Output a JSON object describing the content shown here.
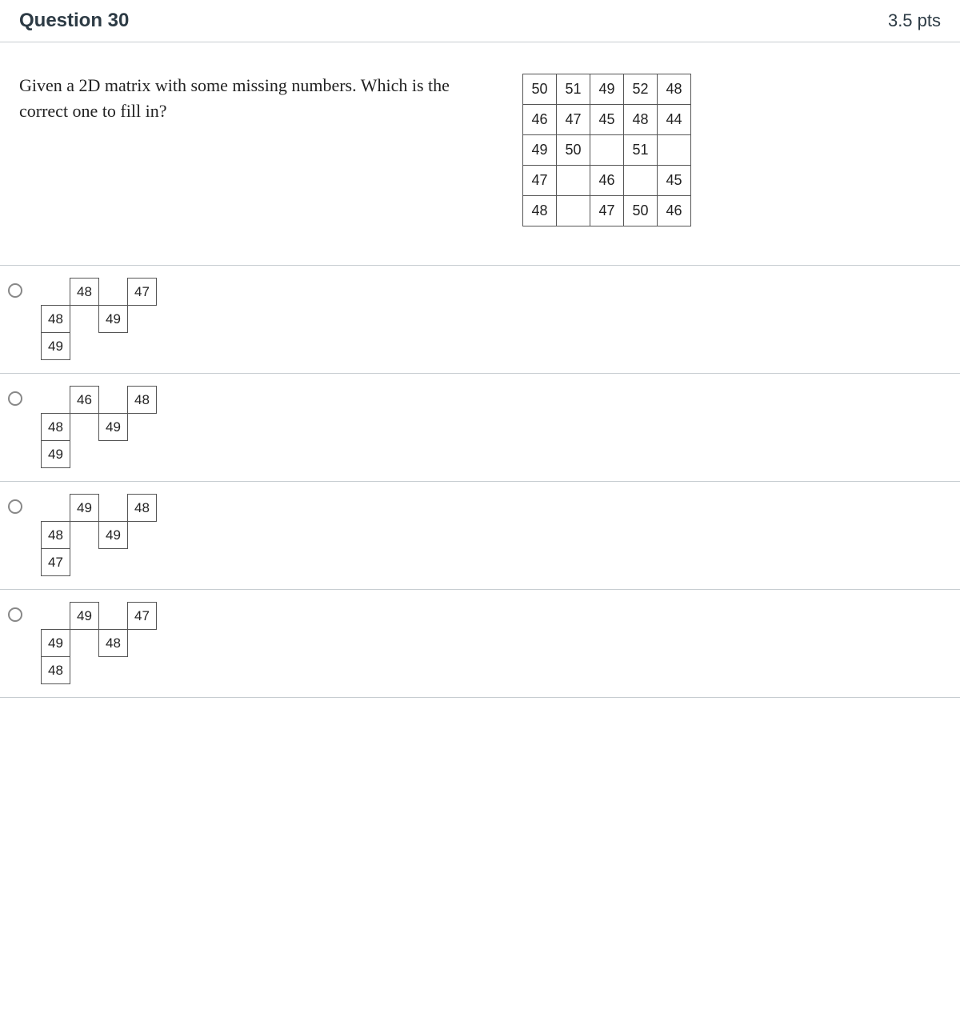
{
  "header": {
    "title": "Question 30",
    "points": "3.5 pts"
  },
  "prompt": "Given a 2D matrix with some missing numbers. Which is the correct one to fill in?",
  "matrix": {
    "rows": 5,
    "cols": 5,
    "cells": [
      [
        "50",
        "51",
        "49",
        "52",
        "48"
      ],
      [
        "46",
        "47",
        "45",
        "48",
        "44"
      ],
      [
        "49",
        "50",
        "",
        "51",
        ""
      ],
      [
        "47",
        "",
        "46",
        "",
        "45"
      ],
      [
        "48",
        "",
        "47",
        "50",
        "46"
      ]
    ]
  },
  "options": [
    {
      "grid": [
        [
          "",
          "48",
          "",
          "47"
        ],
        [
          "48",
          "",
          "49",
          ""
        ],
        [
          "49",
          "",
          "",
          ""
        ]
      ],
      "boxed": [
        [
          0,
          1
        ],
        [
          0,
          3
        ],
        [
          1,
          0
        ],
        [
          1,
          2
        ],
        [
          2,
          0
        ]
      ]
    },
    {
      "grid": [
        [
          "",
          "46",
          "",
          "48"
        ],
        [
          "48",
          "",
          "49",
          ""
        ],
        [
          "49",
          "",
          "",
          ""
        ]
      ],
      "boxed": [
        [
          0,
          1
        ],
        [
          0,
          3
        ],
        [
          1,
          0
        ],
        [
          1,
          2
        ],
        [
          2,
          0
        ]
      ]
    },
    {
      "grid": [
        [
          "",
          "49",
          "",
          "48"
        ],
        [
          "48",
          "",
          "49",
          ""
        ],
        [
          "47",
          "",
          "",
          ""
        ]
      ],
      "boxed": [
        [
          0,
          1
        ],
        [
          0,
          3
        ],
        [
          1,
          0
        ],
        [
          1,
          2
        ],
        [
          2,
          0
        ]
      ]
    },
    {
      "grid": [
        [
          "",
          "49",
          "",
          "47"
        ],
        [
          "49",
          "",
          "48",
          ""
        ],
        [
          "48",
          "",
          "",
          ""
        ]
      ],
      "boxed": [
        [
          0,
          1
        ],
        [
          0,
          3
        ],
        [
          1,
          0
        ],
        [
          1,
          2
        ],
        [
          2,
          0
        ]
      ]
    }
  ]
}
